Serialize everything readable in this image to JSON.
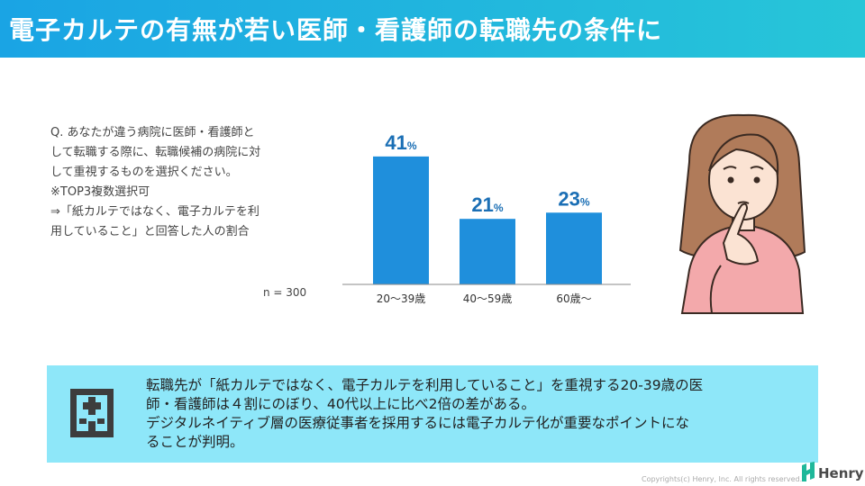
{
  "header": {
    "title": "電子カルテの有無が若い医師・看護師の転職先の条件に"
  },
  "question": {
    "lines": [
      "Q. あなたが違う病院に医師・看護師と",
      "して転職する際に、転職候補の病院に対",
      "して重視するものを選択ください。",
      "※TOP3複数選択可",
      "⇒「紙カルテではなく、電子カルテを利",
      "用していること」と回答した人の割合"
    ]
  },
  "sample": "n = 300",
  "chart_data": {
    "type": "bar",
    "categories": [
      "20～39歳",
      "40～59歳",
      "60歳～"
    ],
    "values": [
      41,
      21,
      23
    ],
    "value_suffix": "%",
    "title": "",
    "xlabel": "",
    "ylabel": "",
    "ylim": [
      0,
      45
    ],
    "grid": false,
    "bar_color": "#1f8fdc",
    "label_color": "#1b6fb5"
  },
  "info": {
    "lines": [
      "転職先が「紙カルテではなく、電子カルテを利用していること」を重視する20-39歳の医",
      "師・看護師は４割にのぼり、40代以上に比べ2倍の差がある。",
      "デジタルネイティブ層の医療従事者を採用するには電子カルテ化が重要なポイントにな",
      "ることが判明。"
    ]
  },
  "footer": {
    "copyright": "Copyrights(c) Henry, Inc. All rights reserved.",
    "logo": "Henry"
  },
  "colors": {
    "header_start": "#1aa4e4",
    "header_end": "#27c6d8",
    "info_bg": "#8ee7f9",
    "logo_green": "#1fb89a"
  }
}
